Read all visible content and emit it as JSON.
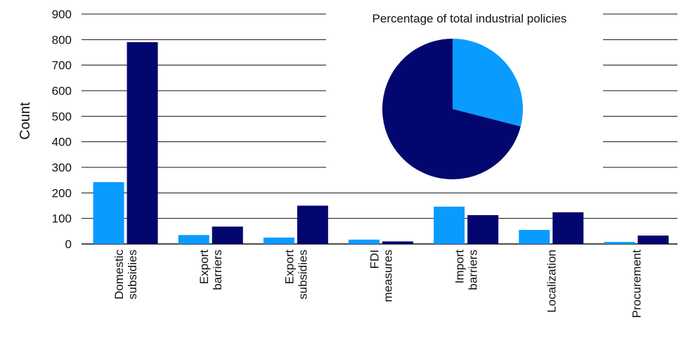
{
  "chart_data": {
    "type": "bar",
    "ylabel": "Count",
    "ylim": [
      0,
      900
    ],
    "yticks": [
      0,
      100,
      200,
      300,
      400,
      500,
      600,
      700,
      800,
      900
    ],
    "grid": true,
    "categories": [
      [
        "Domestic",
        "subsidies"
      ],
      [
        "Export",
        "barriers"
      ],
      [
        "Export",
        "subsidies"
      ],
      [
        "FDI",
        "measures"
      ],
      [
        "Import",
        "barriers"
      ],
      [
        "Localization"
      ],
      [
        "Procurement"
      ]
    ],
    "series": [
      {
        "color": "#0A9BFF",
        "values": [
          242,
          35,
          25,
          17,
          146,
          55,
          8
        ]
      },
      {
        "color": "#03066E",
        "values": [
          790,
          68,
          150,
          10,
          113,
          124,
          33
        ]
      }
    ],
    "inset": {
      "type": "pie",
      "title": "Percentage of total industrial policies",
      "slices": [
        {
          "value": 29,
          "color": "#0A9BFF"
        },
        {
          "value": 71,
          "color": "#03066E"
        }
      ]
    }
  }
}
